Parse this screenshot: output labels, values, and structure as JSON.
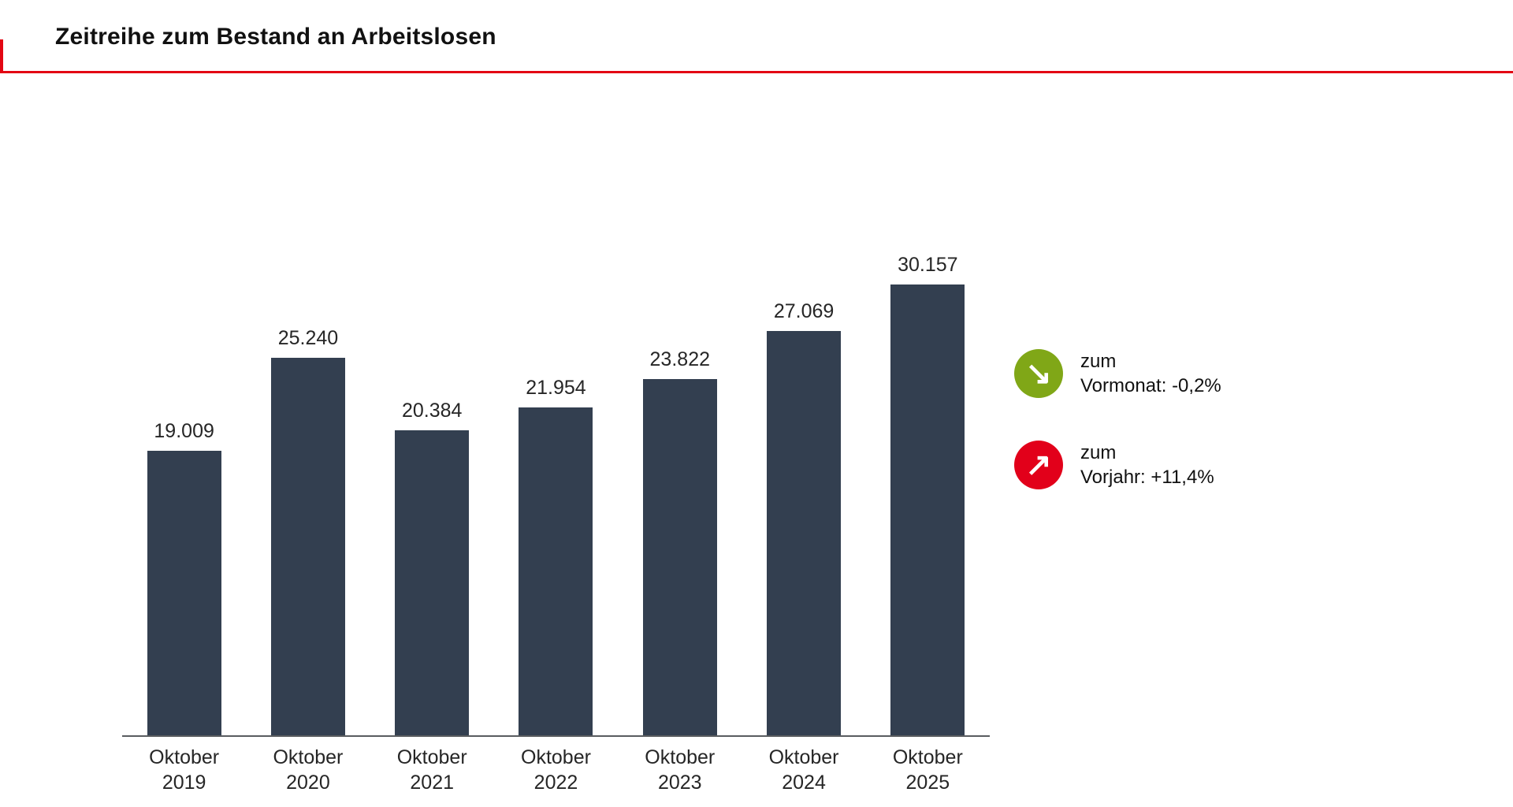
{
  "page": {
    "title": "Zeitreihe zum Bestand an Arbeitslosen",
    "accent_red": "#e30613"
  },
  "chart_data": {
    "type": "bar",
    "title": "Zeitreihe zum Bestand an Arbeitslosen",
    "categories": [
      "Oktober 2019",
      "Oktober 2020",
      "Oktober 2021",
      "Oktober 2022",
      "Oktober 2023",
      "Oktober 2024",
      "Oktober 2025"
    ],
    "values": [
      19009,
      25240,
      20384,
      21954,
      23822,
      27069,
      30157
    ],
    "value_labels": [
      "19.009",
      "25.240",
      "20.384",
      "21.954",
      "23.822",
      "27.069",
      "30.157"
    ],
    "bar_color": "#333f50",
    "xlabel": "",
    "ylabel": "",
    "ylim": [
      0,
      30157
    ],
    "grid": false,
    "y_axis_visible": false,
    "legend_position": "right",
    "annotations": [
      "zum Vormonat: -0,2%",
      "zum Vorjahr: +11,4%"
    ]
  },
  "legend": {
    "items": [
      {
        "icon_glyph": "↘",
        "color": "#80a717",
        "line1": "zum",
        "line2": "Vormonat: -0,2%"
      },
      {
        "icon_glyph": "↗",
        "color": "#e2001a",
        "line1": "zum",
        "line2": "Vorjahr: +11,4%"
      }
    ]
  }
}
